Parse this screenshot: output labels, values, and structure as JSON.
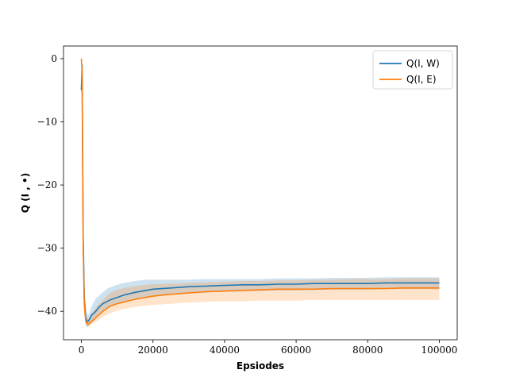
{
  "chart_data": {
    "type": "line",
    "title": "",
    "xlabel": "Epsiodes",
    "ylabel": "Q (I , •)",
    "xlim": [
      -5000,
      105000
    ],
    "ylim": [
      -44.5,
      2
    ],
    "xticks": [
      0,
      20000,
      40000,
      60000,
      80000,
      100000
    ],
    "xtick_labels": [
      "0",
      "20000",
      "40000",
      "60000",
      "80000",
      "100000"
    ],
    "yticks": [
      0,
      -10,
      -20,
      -30,
      -40
    ],
    "ytick_labels": [
      "0",
      "−10",
      "−20",
      "−30",
      "−40"
    ],
    "grid": false,
    "legend_position": "top-right",
    "series": [
      {
        "name": "Q(I, W)",
        "color": "#1f77b4",
        "x": [
          0,
          200,
          500,
          800,
          1200,
          1600,
          2000,
          2500,
          3000,
          3500,
          4000,
          5000,
          6000,
          7000,
          8000,
          10000,
          12000,
          15000,
          18000,
          20000,
          25000,
          30000,
          35000,
          40000,
          45000,
          50000,
          55000,
          60000,
          65000,
          70000,
          75000,
          80000,
          85000,
          90000,
          95000,
          100000
        ],
        "values": [
          -5,
          -1,
          -28,
          -38,
          -41,
          -41.7,
          -41.5,
          -41,
          -40.5,
          -40.3,
          -40,
          -39.3,
          -38.8,
          -38.5,
          -38.2,
          -37.8,
          -37.4,
          -37,
          -36.7,
          -36.5,
          -36.3,
          -36.1,
          -36,
          -35.9,
          -35.8,
          -35.8,
          -35.7,
          -35.7,
          -35.6,
          -35.6,
          -35.6,
          -35.6,
          -35.5,
          -35.5,
          -35.5,
          -35.5
        ],
        "lower": [
          -5,
          -1,
          -31,
          -40,
          -42.2,
          -42.5,
          -42.3,
          -42,
          -41.8,
          -41.5,
          -41.2,
          -40.6,
          -40.1,
          -39.7,
          -39.3,
          -38.9,
          -38.5,
          -38.1,
          -37.8,
          -37.6,
          -37.3,
          -37.1,
          -37,
          -36.9,
          -36.8,
          -36.8,
          -36.7,
          -36.7,
          -36.6,
          -36.6,
          -36.6,
          -36.6,
          -36.5,
          -36.5,
          -36.5,
          -36.5
        ],
        "upper": [
          0,
          0,
          -24,
          -35,
          -39.5,
          -40.5,
          -40.5,
          -39.8,
          -39,
          -38.5,
          -38,
          -37.5,
          -37,
          -36.5,
          -36.2,
          -35.8,
          -35.5,
          -35.2,
          -35,
          -35,
          -35,
          -35,
          -34.9,
          -34.9,
          -34.9,
          -34.9,
          -34.8,
          -34.8,
          -34.8,
          -34.7,
          -34.7,
          -34.7,
          -34.6,
          -34.6,
          -34.6,
          -34.6
        ]
      },
      {
        "name": "Q(I, E)",
        "color": "#ff7f0e",
        "x": [
          0,
          200,
          500,
          800,
          1200,
          1600,
          2000,
          2500,
          3000,
          3500,
          4000,
          5000,
          6000,
          7000,
          8000,
          10000,
          12000,
          15000,
          18000,
          20000,
          25000,
          30000,
          35000,
          40000,
          45000,
          50000,
          55000,
          60000,
          65000,
          70000,
          75000,
          80000,
          85000,
          90000,
          95000,
          100000
        ],
        "values": [
          0,
          -2,
          -30,
          -39,
          -41.5,
          -42,
          -42,
          -41.8,
          -41.5,
          -41.3,
          -41,
          -40.5,
          -40,
          -39.6,
          -39.2,
          -38.8,
          -38.5,
          -38.1,
          -37.8,
          -37.6,
          -37.3,
          -37.1,
          -36.9,
          -36.8,
          -36.7,
          -36.6,
          -36.5,
          -36.5,
          -36.5,
          -36.4,
          -36.4,
          -36.4,
          -36.4,
          -36.3,
          -36.3,
          -36.3
        ],
        "lower": [
          -1,
          -3,
          -33,
          -40.5,
          -42.3,
          -42.5,
          -42.5,
          -42.3,
          -42,
          -41.9,
          -41.7,
          -41.3,
          -40.9,
          -40.6,
          -40.3,
          -39.9,
          -39.6,
          -39.3,
          -39.1,
          -39,
          -38.8,
          -38.6,
          -38.5,
          -38.4,
          -38.4,
          -38.3,
          -38.3,
          -38.3,
          -38.2,
          -38.2,
          -38.2,
          -38.2,
          -38.2,
          -38.2,
          -38.2,
          -38.2
        ],
        "upper": [
          0,
          0,
          -26,
          -37,
          -40.5,
          -41.2,
          -41.2,
          -40.8,
          -40.2,
          -39.8,
          -39.4,
          -38.8,
          -38.2,
          -37.6,
          -37.1,
          -36.6,
          -36.3,
          -36,
          -35.8,
          -35.7,
          -35.6,
          -35.5,
          -35.4,
          -35.3,
          -35.2,
          -35.2,
          -35.1,
          -35.1,
          -35,
          -35,
          -34.9,
          -34.9,
          -34.9,
          -34.8,
          -34.8,
          -34.8
        ]
      }
    ]
  }
}
